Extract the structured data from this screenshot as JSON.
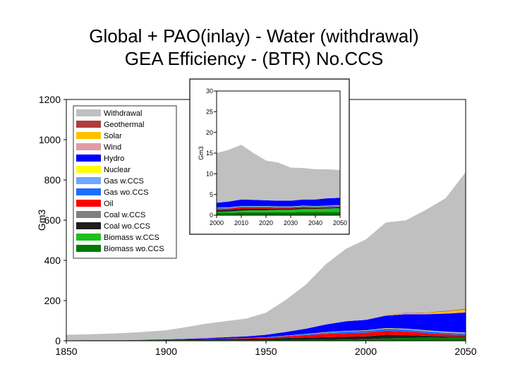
{
  "title_line1": "Global + PAO(inlay) - Water (withdrawal)",
  "title_line2": "GEA Efficiency - (BTR) No.CCS",
  "chart_data": [
    {
      "type": "area",
      "stacked": true,
      "ylabel": "Gm3",
      "xlim": [
        1850,
        2050
      ],
      "ylim": [
        0,
        1200
      ],
      "x_ticks": [
        1850,
        1900,
        1950,
        2000,
        2050
      ],
      "y_ticks": [
        0,
        200,
        400,
        600,
        800,
        1000,
        1200
      ],
      "grid": false,
      "legend_position": "upper-left",
      "x": [
        1850,
        1860,
        1870,
        1880,
        1890,
        1900,
        1910,
        1920,
        1930,
        1940,
        1950,
        1960,
        1970,
        1980,
        1990,
        2000,
        2010,
        2020,
        2030,
        2040,
        2050
      ],
      "series": [
        {
          "name": "Biomass wo.CCS",
          "color": "#007a00",
          "values": [
            2,
            2,
            2,
            2,
            3,
            3,
            3,
            3,
            3,
            3,
            3,
            4,
            4,
            5,
            6,
            8,
            12,
            14,
            15,
            16,
            18
          ]
        },
        {
          "name": "Biomass w.CCS",
          "color": "#1ec01e",
          "values": [
            0,
            0,
            0,
            0,
            0,
            0,
            0,
            0,
            0,
            0,
            0,
            0,
            0,
            0,
            0,
            0,
            0,
            0,
            0,
            0,
            0
          ]
        },
        {
          "name": "Coal wo.CCS",
          "color": "#1e1e1e",
          "values": [
            0,
            1,
            1,
            1,
            2,
            3,
            4,
            5,
            6,
            7,
            8,
            10,
            12,
            13,
            14,
            14,
            18,
            14,
            10,
            6,
            3
          ]
        },
        {
          "name": "Coal w.CCS",
          "color": "#808080",
          "values": [
            0,
            0,
            0,
            0,
            0,
            0,
            0,
            0,
            0,
            0,
            0,
            0,
            0,
            0,
            0,
            0,
            0,
            0,
            0,
            0,
            0
          ]
        },
        {
          "name": "Oil",
          "color": "#ff0000",
          "values": [
            0,
            0,
            0,
            0,
            0,
            0,
            1,
            1,
            2,
            3,
            5,
            8,
            12,
            16,
            18,
            18,
            20,
            18,
            14,
            10,
            8
          ]
        },
        {
          "name": "Gas wo.CCS",
          "color": "#1e6eff",
          "values": [
            0,
            0,
            0,
            0,
            0,
            0,
            0,
            0,
            1,
            1,
            2,
            3,
            5,
            7,
            9,
            10,
            10,
            10,
            9,
            8,
            7
          ]
        },
        {
          "name": "Gas w.CCS",
          "color": "#6ea8ff",
          "values": [
            0,
            0,
            0,
            0,
            0,
            0,
            0,
            0,
            0,
            0,
            0,
            0,
            0,
            0,
            0,
            0,
            1,
            2,
            2,
            3,
            3
          ]
        },
        {
          "name": "Nuclear",
          "color": "#ffff00",
          "values": [
            0,
            0,
            0,
            0,
            0,
            0,
            0,
            0,
            0,
            0,
            0,
            1,
            1,
            2,
            2,
            2,
            2,
            2,
            2,
            2,
            2
          ]
        },
        {
          "name": "Hydro",
          "color": "#0000ff",
          "values": [
            0,
            0,
            0,
            0,
            0,
            1,
            2,
            4,
            6,
            8,
            12,
            18,
            26,
            38,
            48,
            52,
            62,
            72,
            80,
            90,
            100
          ]
        },
        {
          "name": "Wind",
          "color": "#e09ca4",
          "values": [
            0,
            0,
            0,
            0,
            0,
            0,
            0,
            0,
            0,
            0,
            0,
            0,
            0,
            0,
            0,
            0,
            1,
            2,
            2,
            3,
            3
          ]
        },
        {
          "name": "Solar",
          "color": "#ffc000",
          "values": [
            0,
            0,
            0,
            0,
            0,
            0,
            0,
            0,
            0,
            0,
            0,
            0,
            0,
            0,
            0,
            0,
            1,
            3,
            5,
            8,
            12
          ]
        },
        {
          "name": "Geothermal",
          "color": "#b03c3c",
          "values": [
            0,
            0,
            0,
            0,
            0,
            0,
            0,
            0,
            0,
            0,
            0,
            0,
            0,
            0,
            0,
            0,
            1,
            2,
            2,
            3,
            3
          ]
        },
        {
          "name": "Withdrawal",
          "color": "#c0c0c0",
          "values": [
            28,
            29,
            32,
            36,
            40,
            45,
            58,
            72,
            80,
            88,
            110,
            160,
            220,
            300,
            360,
            400,
            460,
            460,
            510,
            560,
            680
          ]
        }
      ]
    },
    {
      "type": "area",
      "stacked": true,
      "inset": true,
      "ylabel": "Gm3",
      "xlim": [
        2000,
        2050
      ],
      "ylim": [
        0,
        30
      ],
      "x_ticks": [
        2000,
        2010,
        2020,
        2030,
        2040,
        2050
      ],
      "y_ticks": [
        0,
        5,
        10,
        15,
        20,
        25,
        30
      ],
      "grid": false,
      "x": [
        2000,
        2005,
        2010,
        2015,
        2020,
        2025,
        2030,
        2035,
        2040,
        2045,
        2050
      ],
      "series": [
        {
          "name": "Biomass wo.CCS",
          "color": "#007a00",
          "values": [
            0.6,
            0.6,
            0.7,
            0.7,
            0.7,
            0.7,
            0.7,
            0.8,
            0.8,
            0.8,
            0.8
          ]
        },
        {
          "name": "Biomass w.CCS",
          "color": "#1ec01e",
          "values": [
            0.2,
            0.3,
            0.4,
            0.5,
            0.5,
            0.6,
            0.6,
            0.7,
            0.7,
            0.8,
            0.9
          ]
        },
        {
          "name": "Coal wo.CCS",
          "color": "#1e1e1e",
          "values": [
            0.4,
            0.4,
            0.5,
            0.4,
            0.4,
            0.3,
            0.3,
            0.3,
            0.2,
            0.2,
            0.2
          ]
        },
        {
          "name": "Coal w.CCS",
          "color": "#808080",
          "values": [
            0,
            0,
            0,
            0,
            0,
            0,
            0,
            0,
            0,
            0,
            0
          ]
        },
        {
          "name": "Oil",
          "color": "#ff0000",
          "values": [
            0.3,
            0.3,
            0.3,
            0.3,
            0.3,
            0.2,
            0.2,
            0.2,
            0.2,
            0.2,
            0.2
          ]
        },
        {
          "name": "Gas wo.CCS",
          "color": "#1e6eff",
          "values": [
            0.2,
            0.2,
            0.2,
            0.2,
            0.2,
            0.2,
            0.2,
            0.2,
            0.2,
            0.2,
            0.2
          ]
        },
        {
          "name": "Gas w.CCS",
          "color": "#6ea8ff",
          "values": [
            0,
            0,
            0,
            0,
            0,
            0,
            0,
            0,
            0,
            0,
            0
          ]
        },
        {
          "name": "Nuclear",
          "color": "#ffff00",
          "values": [
            0.1,
            0.1,
            0.1,
            0.1,
            0.1,
            0.1,
            0.1,
            0.1,
            0.1,
            0.1,
            0.1
          ]
        },
        {
          "name": "Hydro",
          "color": "#0000ff",
          "values": [
            1.2,
            1.4,
            1.6,
            1.5,
            1.4,
            1.4,
            1.4,
            1.5,
            1.6,
            1.8,
            1.8
          ]
        },
        {
          "name": "Wind",
          "color": "#e09ca4",
          "values": [
            0,
            0,
            0,
            0,
            0,
            0,
            0,
            0,
            0,
            0,
            0
          ]
        },
        {
          "name": "Solar",
          "color": "#ffc000",
          "values": [
            0,
            0,
            0,
            0,
            0,
            0,
            0,
            0,
            0,
            0,
            0.1
          ]
        },
        {
          "name": "Geothermal",
          "color": "#b03c3c",
          "values": [
            0,
            0,
            0,
            0,
            0,
            0,
            0,
            0,
            0,
            0,
            0
          ]
        },
        {
          "name": "Withdrawal",
          "color": "#c0c0c0",
          "values": [
            12.0,
            12.5,
            13.2,
            11.3,
            9.6,
            9.2,
            8.0,
            7.6,
            7.3,
            7.0,
            6.6
          ]
        }
      ]
    }
  ]
}
